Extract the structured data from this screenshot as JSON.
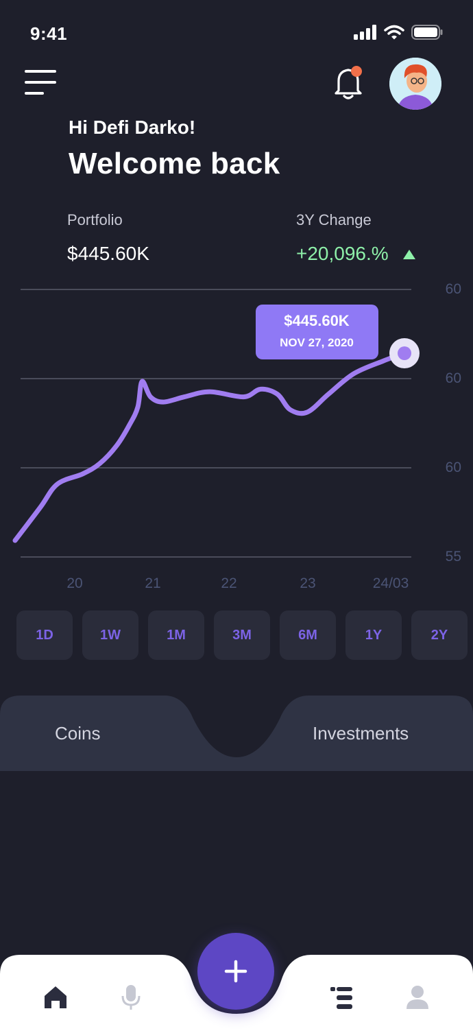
{
  "status_bar": {
    "time": "9:41"
  },
  "header": {
    "greeting": "Hi Defi Darko!",
    "welcome": "Welcome back"
  },
  "portfolio": {
    "label": "Portfolio",
    "value": "$445.60K",
    "change_label": "3Y Change",
    "change_value": "+20,096.%",
    "change_color": "#8ef0a9"
  },
  "chart_data": {
    "type": "line",
    "x_ticks": [
      "20",
      "21",
      "22",
      "23",
      "24/03"
    ],
    "y_ticks": [
      "60",
      "60",
      "60",
      "55"
    ],
    "series": [
      {
        "color": "#a07df0",
        "points": [
          [
            19.5,
            55.0
          ],
          [
            19.8,
            56.3
          ],
          [
            20.0,
            57.2
          ],
          [
            20.3,
            57.6
          ],
          [
            20.5,
            58.0
          ],
          [
            20.7,
            58.7
          ],
          [
            20.85,
            59.5
          ],
          [
            20.95,
            60.2
          ],
          [
            21.0,
            61.2
          ],
          [
            21.1,
            60.6
          ],
          [
            21.25,
            60.4
          ],
          [
            21.5,
            60.6
          ],
          [
            21.8,
            60.8
          ],
          [
            22.2,
            60.6
          ],
          [
            22.4,
            60.9
          ],
          [
            22.6,
            60.7
          ],
          [
            22.75,
            60.1
          ],
          [
            22.95,
            60.0
          ],
          [
            23.2,
            60.7
          ],
          [
            23.5,
            61.5
          ],
          [
            23.85,
            62.0
          ],
          [
            24.1,
            62.3
          ]
        ]
      }
    ],
    "tooltip": {
      "value": "$445.60K",
      "date": "NOV 27, 2020"
    },
    "accent": "#8f79f5",
    "grid": true
  },
  "timeframes": [
    "1D",
    "1W",
    "1M",
    "3M",
    "6M",
    "1Y",
    "2Y"
  ],
  "tabs": {
    "left": "Coins",
    "right": "Investments"
  },
  "nav": {
    "items": [
      "home-icon",
      "microphone-icon",
      "list-icon",
      "profile-icon"
    ],
    "fab_icon": "plus-icon"
  },
  "colors": {
    "background": "#1e1f2b",
    "panel": "#2f3344",
    "accent": "#5d47c4",
    "line": "#a07df0"
  }
}
